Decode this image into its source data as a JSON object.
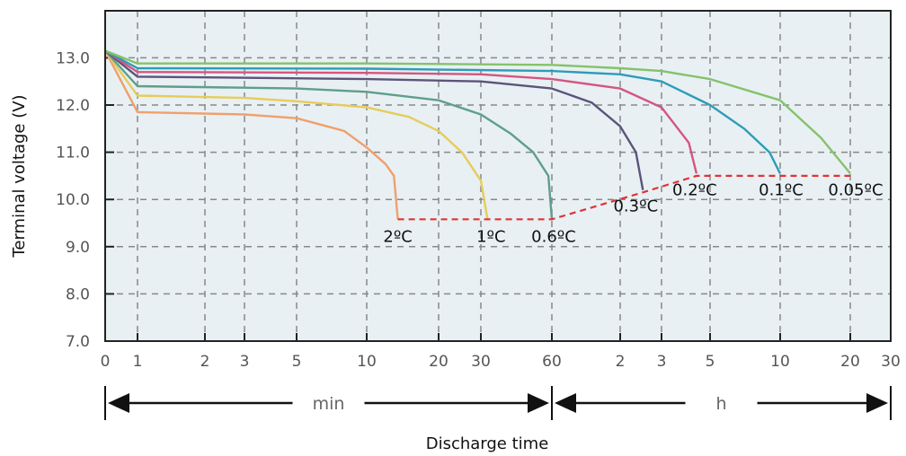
{
  "chart_data": {
    "type": "line",
    "title": "",
    "xlabel": "Discharge time",
    "ylabel": "Terminal voltage (V)",
    "ylim": [
      7.0,
      13.6
    ],
    "y_ticks": [
      "13.0",
      "12.0",
      "11.0",
      "10.0",
      "9.0",
      "8.0",
      "7.0"
    ],
    "x_scale": "logarithmic, two segments: 0–60 min, then 1–30 h",
    "x_ticks_min": [
      "0",
      "1",
      "2",
      "3",
      "5",
      "10",
      "20",
      "30",
      "60"
    ],
    "x_ticks_h": [
      "2",
      "3",
      "5",
      "10",
      "20",
      "30"
    ],
    "ranges": [
      {
        "label": "min",
        "from": "0 min",
        "to": "60 min"
      },
      {
        "label": "h",
        "from": "60 min",
        "to": "30 h"
      }
    ],
    "grid": true,
    "legend": "inline labels at curve ends",
    "series": [
      {
        "name": "2ºC",
        "color": "#f0a06b",
        "points": [
          [
            0,
            13.15
          ],
          [
            1,
            11.85
          ],
          [
            3,
            11.8
          ],
          [
            5,
            11.72
          ],
          [
            8,
            11.45
          ],
          [
            10,
            11.1
          ],
          [
            12,
            10.75
          ],
          [
            13,
            10.5
          ],
          [
            13.5,
            9.58
          ]
        ]
      },
      {
        "name": "1ºC",
        "color": "#e6cc5a",
        "points": [
          [
            0,
            13.15
          ],
          [
            1,
            12.2
          ],
          [
            3,
            12.15
          ],
          [
            5,
            12.08
          ],
          [
            10,
            11.95
          ],
          [
            15,
            11.75
          ],
          [
            20,
            11.45
          ],
          [
            25,
            11.0
          ],
          [
            30,
            10.4
          ],
          [
            32,
            9.58
          ]
        ]
      },
      {
        "name": "0.6ºC",
        "color": "#5f9e8a",
        "points": [
          [
            0,
            13.15
          ],
          [
            1,
            12.4
          ],
          [
            5,
            12.35
          ],
          [
            10,
            12.28
          ],
          [
            20,
            12.1
          ],
          [
            30,
            11.8
          ],
          [
            40,
            11.4
          ],
          [
            50,
            11.0
          ],
          [
            58,
            10.5
          ],
          [
            60,
            9.58
          ]
        ]
      },
      {
        "name": "0.3ºC",
        "color": "#5c5479",
        "points": [
          [
            0,
            13.15
          ],
          [
            1,
            12.6
          ],
          [
            10,
            12.55
          ],
          [
            30,
            12.5
          ],
          [
            60,
            12.35
          ],
          [
            90,
            12.05
          ],
          [
            120,
            11.55
          ],
          [
            140,
            11.0
          ],
          [
            150,
            10.2
          ]
        ]
      },
      {
        "name": "0.2ºC",
        "color": "#d4567f",
        "points": [
          [
            0,
            13.15
          ],
          [
            1,
            12.7
          ],
          [
            10,
            12.68
          ],
          [
            30,
            12.65
          ],
          [
            60,
            12.55
          ],
          [
            120,
            12.35
          ],
          [
            180,
            11.95
          ],
          [
            240,
            11.2
          ],
          [
            260,
            10.55
          ]
        ]
      },
      {
        "name": "0.1ºC",
        "color": "#2e9cb8",
        "points": [
          [
            0,
            13.15
          ],
          [
            1,
            12.78
          ],
          [
            10,
            12.77
          ],
          [
            60,
            12.72
          ],
          [
            120,
            12.65
          ],
          [
            180,
            12.5
          ],
          [
            300,
            12.0
          ],
          [
            420,
            11.5
          ],
          [
            540,
            11.0
          ],
          [
            600,
            10.55
          ]
        ]
      },
      {
        "name": "0.05ºC",
        "color": "#85c26a",
        "points": [
          [
            0,
            13.15
          ],
          [
            1,
            12.88
          ],
          [
            10,
            12.88
          ],
          [
            60,
            12.85
          ],
          [
            120,
            12.78
          ],
          [
            180,
            12.72
          ],
          [
            300,
            12.55
          ],
          [
            600,
            12.1
          ],
          [
            900,
            11.3
          ],
          [
            1200,
            10.55
          ]
        ]
      }
    ],
    "cutoff_line": {
      "color": "#e03434",
      "points": [
        [
          13.5,
          9.58
        ],
        [
          60,
          9.58
        ],
        [
          150,
          10.15
        ],
        [
          260,
          10.5
        ],
        [
          1200,
          10.5
        ]
      ]
    }
  }
}
